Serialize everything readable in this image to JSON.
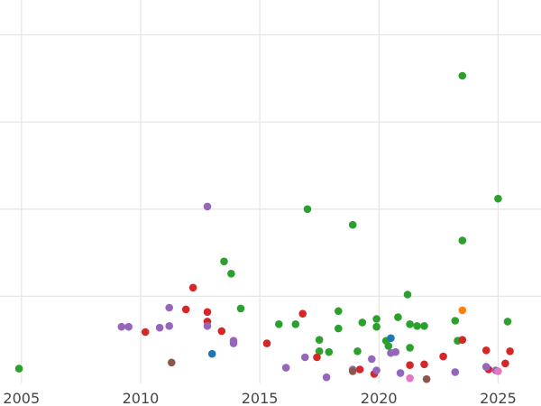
{
  "chart_data": {
    "type": "scatter",
    "title": "",
    "xlabel": "",
    "ylabel": "",
    "xlim": [
      2004.1,
      2026.8
    ],
    "ylim": [
      0,
      44
    ],
    "x_ticks": [
      2005,
      2010,
      2015,
      2020,
      2025
    ],
    "x_tick_labels": [
      "2005",
      "2010",
      "2015",
      "2020",
      "2025"
    ],
    "y_ticks": [
      10,
      20,
      30,
      40
    ],
    "y_tick_labels": [],
    "grid": true,
    "legend": "none",
    "series": [
      {
        "color": "#2ca02c",
        "points": [
          [
            2004.9,
            1.7
          ],
          [
            2014.2,
            8.6
          ],
          [
            2013.5,
            14.0
          ],
          [
            2013.8,
            12.6
          ],
          [
            2015.8,
            6.8
          ],
          [
            2016.5,
            6.8
          ],
          [
            2017.0,
            20.0
          ],
          [
            2017.5,
            5.0
          ],
          [
            2017.5,
            3.7
          ],
          [
            2017.9,
            3.6
          ],
          [
            2018.3,
            8.3
          ],
          [
            2018.3,
            6.3
          ],
          [
            2018.9,
            18.2
          ],
          [
            2019.1,
            3.7
          ],
          [
            2019.3,
            7.0
          ],
          [
            2019.9,
            7.4
          ],
          [
            2019.9,
            6.5
          ],
          [
            2020.3,
            4.9
          ],
          [
            2020.4,
            4.3
          ],
          [
            2020.8,
            7.6
          ],
          [
            2021.2,
            10.2
          ],
          [
            2021.3,
            6.8
          ],
          [
            2021.3,
            4.1
          ],
          [
            2021.6,
            6.6
          ],
          [
            2021.9,
            6.6
          ],
          [
            2023.2,
            7.2
          ],
          [
            2023.3,
            4.9
          ],
          [
            2023.5,
            35.3
          ],
          [
            2023.5,
            16.4
          ],
          [
            2025.0,
            21.2
          ],
          [
            2025.4,
            7.1
          ]
        ]
      },
      {
        "color": "#d62728",
        "points": [
          [
            2010.2,
            5.9
          ],
          [
            2011.9,
            8.5
          ],
          [
            2012.2,
            11.0
          ],
          [
            2012.8,
            8.2
          ],
          [
            2012.8,
            7.1
          ],
          [
            2013.4,
            6.0
          ],
          [
            2015.3,
            4.6
          ],
          [
            2016.8,
            8.0
          ],
          [
            2017.4,
            3.0
          ],
          [
            2019.2,
            1.6
          ],
          [
            2019.8,
            1.1
          ],
          [
            2021.3,
            2.1
          ],
          [
            2021.9,
            2.2
          ],
          [
            2022.7,
            3.1
          ],
          [
            2023.5,
            5.0
          ],
          [
            2024.5,
            3.8
          ],
          [
            2024.6,
            1.6
          ],
          [
            2025.3,
            2.3
          ],
          [
            2025.5,
            3.7
          ]
        ]
      },
      {
        "color": "#9467bd",
        "points": [
          [
            2009.2,
            6.5
          ],
          [
            2009.5,
            6.5
          ],
          [
            2010.8,
            6.4
          ],
          [
            2011.2,
            8.7
          ],
          [
            2011.2,
            6.6
          ],
          [
            2012.8,
            20.3
          ],
          [
            2012.8,
            6.6
          ],
          [
            2013.9,
            4.9
          ],
          [
            2013.9,
            4.6
          ],
          [
            2016.1,
            1.8
          ],
          [
            2016.9,
            3.0
          ],
          [
            2017.8,
            0.7
          ],
          [
            2018.9,
            1.6
          ],
          [
            2019.7,
            2.8
          ],
          [
            2019.9,
            1.5
          ],
          [
            2020.5,
            3.5
          ],
          [
            2020.7,
            3.6
          ],
          [
            2020.9,
            1.2
          ],
          [
            2023.2,
            1.3
          ],
          [
            2024.5,
            1.9
          ],
          [
            2024.9,
            1.5
          ]
        ]
      },
      {
        "color": "#1f77b4",
        "points": [
          [
            2013.0,
            3.4
          ],
          [
            2020.5,
            5.2
          ]
        ]
      },
      {
        "color": "#8c564b",
        "points": [
          [
            2011.3,
            2.4
          ],
          [
            2018.9,
            1.4
          ],
          [
            2022.0,
            0.5
          ]
        ]
      },
      {
        "color": "#ff7f0e",
        "points": [
          [
            2023.5,
            8.4
          ]
        ]
      },
      {
        "color": "#e377c2",
        "points": [
          [
            2021.3,
            0.6
          ],
          [
            2025.0,
            1.4
          ]
        ]
      }
    ]
  }
}
